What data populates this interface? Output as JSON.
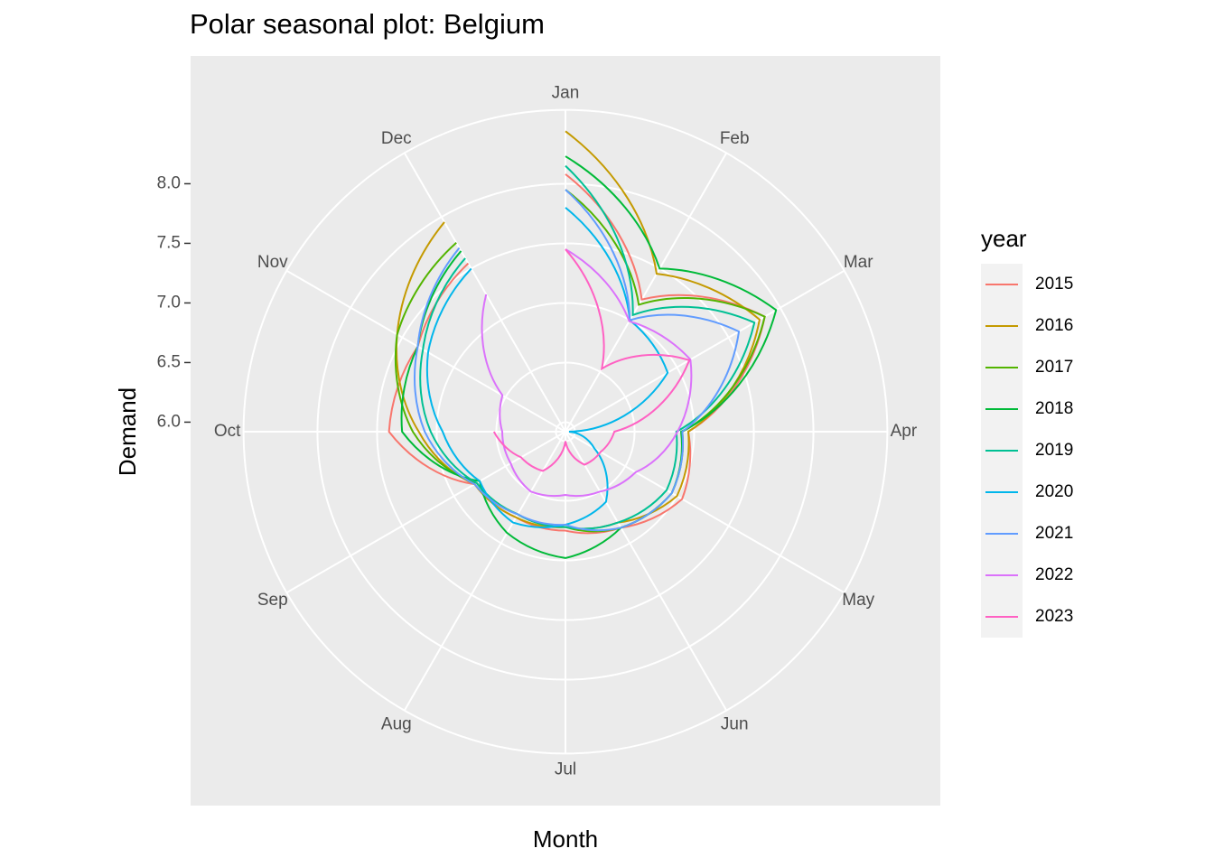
{
  "chart_data": {
    "type": "polar-line",
    "title": "Polar seasonal plot: Belgium",
    "x_label": "Month",
    "y_label": "Demand",
    "legend_title": "year",
    "categories": [
      "Jan",
      "Feb",
      "Mar",
      "Apr",
      "May",
      "Jun",
      "Jul",
      "Aug",
      "Sep",
      "Oct",
      "Nov",
      "Dec"
    ],
    "ylim": [
      5.92,
      8.62
    ],
    "yticks": [
      {
        "value": 6,
        "label": "6.0"
      },
      6.5,
      {
        "value": 7,
        "label": "7.0"
      },
      7.5,
      {
        "value": 8,
        "label": "8.0"
      }
    ],
    "grid": true,
    "legend": "right",
    "series": [
      {
        "name": "2015",
        "color": "#f8766d",
        "values": [
          8.08,
          7.2,
          7.85,
          6.95,
          7.05,
          6.85,
          6.75,
          6.75,
          6.8,
          7.4,
          7.35,
          7.55
        ]
      },
      {
        "name": "2016",
        "color": "#c49a00",
        "values": [
          8.44,
          7.45,
          7.8,
          6.95,
          7.0,
          6.8,
          6.72,
          6.75,
          6.8,
          7.15,
          7.55,
          7.95
        ]
      },
      {
        "name": "2017",
        "color": "#53b400",
        "values": [
          7.95,
          7.15,
          7.85,
          6.9,
          6.95,
          6.85,
          6.72,
          6.72,
          6.78,
          7.2,
          7.55,
          7.75
        ]
      },
      {
        "name": "2018",
        "color": "#00ba38",
        "values": [
          8.23,
          7.5,
          7.96,
          6.89,
          6.95,
          6.85,
          6.98,
          6.9,
          6.75,
          7.29,
          7.35,
          7.67
        ]
      },
      {
        "name": "2019",
        "color": "#00c094",
        "values": [
          8.15,
          7.05,
          7.75,
          6.85,
          6.9,
          6.8,
          6.72,
          6.72,
          6.78,
          7.05,
          7.3,
          7.6
        ]
      },
      {
        "name": "2020",
        "color": "#00b6eb",
        "values": [
          7.8,
          7.0,
          6.91,
          5.95,
          6.2,
          6.6,
          6.7,
          6.8,
          6.75,
          6.95,
          7.25,
          7.5
        ]
      },
      {
        "name": "2021",
        "color": "#619cff",
        "values": [
          7.95,
          7.0,
          7.6,
          6.9,
          6.95,
          6.85,
          6.7,
          6.72,
          6.8,
          7.1,
          7.35,
          7.7
        ]
      },
      {
        "name": "2022",
        "color": "#db72fb",
        "values": [
          7.45,
          6.99,
          7.13,
          6.86,
          6.6,
          6.5,
          6.45,
          6.5,
          6.45,
          6.45,
          6.53,
          7.25
        ]
      },
      {
        "name": "2023",
        "color": "#ff61c3",
        "values": [
          7.45,
          6.53,
          7.12,
          6.33,
          6.26,
          6.24,
          6.0,
          6.3,
          6.35,
          6.52,
          null,
          null
        ]
      }
    ]
  }
}
